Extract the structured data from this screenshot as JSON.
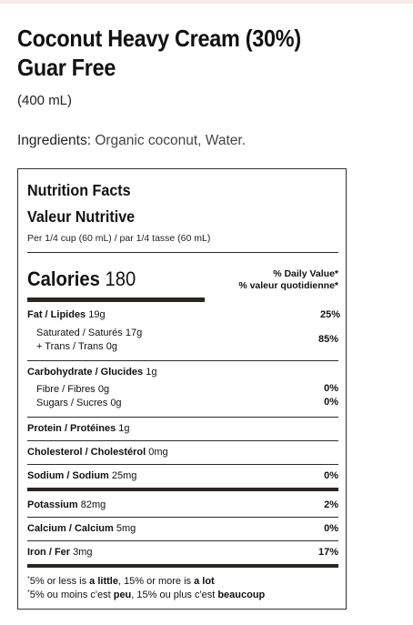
{
  "product": {
    "title_line1": "Coconut Heavy Cream (30%)",
    "title_line2": "Guar Free",
    "size": "(400 mL)",
    "ingredients_label": "Ingredients:",
    "ingredients_value": "Organic coconut, Water."
  },
  "nutrition": {
    "title_en": "Nutrition Facts",
    "title_fr": "Valeur Nutritive",
    "serving": "Per 1/4 cup (60 mL) / par 1/4 tasse (60 mL)",
    "calories_label": "Calories",
    "calories_value": "180",
    "dv_header_en": "% Daily Value*",
    "dv_header_fr": "% valeur quotidienne*",
    "fat": {
      "name": "Fat / Lipides",
      "amount": "19g",
      "pct": "25%"
    },
    "saturated": {
      "text": "Saturated / Saturés 17g"
    },
    "trans": {
      "text": "+ Trans / Trans 0g"
    },
    "sat_trans_pct": "85%",
    "carb": {
      "name": "Carbohydrate / Glucides",
      "amount": "1g"
    },
    "fibre": {
      "text": "Fibre / Fibres 0g",
      "pct": "0%"
    },
    "sugars": {
      "text": "Sugars / Sucres 0g",
      "pct": "0%"
    },
    "protein": {
      "name": "Protein / Protéines",
      "amount": "1g"
    },
    "cholesterol": {
      "name": "Cholesterol / Cholestérol",
      "amount": "0mg"
    },
    "sodium": {
      "name": "Sodium / Sodium",
      "amount": "25mg",
      "pct": "0%"
    },
    "potassium": {
      "name": "Potassium",
      "amount": "82mg",
      "pct": "2%"
    },
    "calcium": {
      "name": "Calcium / Calcium",
      "amount": "5mg",
      "pct": "0%"
    },
    "iron": {
      "name": "Iron / Fer",
      "amount": "3mg",
      "pct": "17%"
    },
    "footnote_en": {
      "a": "5% or less is ",
      "b": "a little",
      "c": ", 15% or more is ",
      "d": "a lot"
    },
    "footnote_fr": {
      "a": "5% ou moins c'est ",
      "b": "peu",
      "c": ", 15% ou plus c'est ",
      "d": "beaucoup"
    }
  }
}
